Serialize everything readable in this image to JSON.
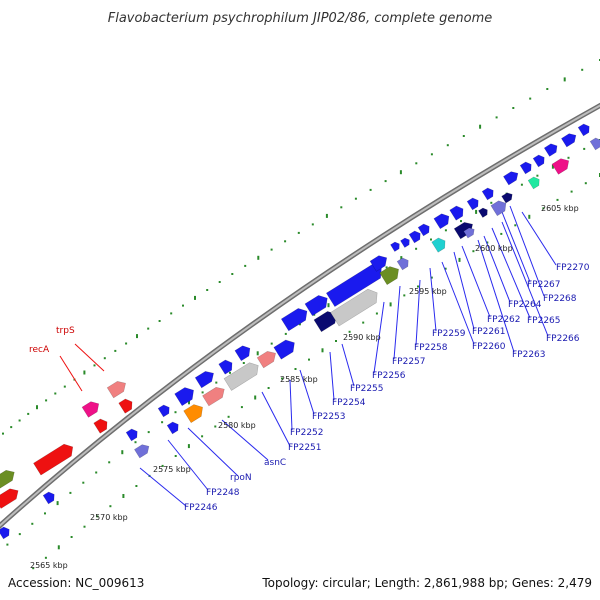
{
  "title": "Flavobacterium psychrophilum JIP02/86, complete genome",
  "accession": "Accession: NC_009613",
  "summary": "Topology: circular; Length: 2,861,988 bp; Genes: 2,479",
  "colors": {
    "backbone": "#888888",
    "tick": "#2a8a2a",
    "leader_blue": "#2a2aee",
    "leader_red": "#ee1111",
    "gene_blue": "#1a1aee",
    "gene_red": "#ee1111",
    "gene_pink": "#f08080",
    "gene_magenta": "#ee1188",
    "gene_navy": "#0a0a70",
    "gene_lavender": "#7070d8",
    "gene_olive": "#6b8e23",
    "gene_gray": "#c8c8c8",
    "gene_orange": "#ff8c00",
    "gene_cyan": "#20d0d0",
    "gene_mint": "#20e8a0"
  },
  "kbp_labels": [
    "2565 kbp",
    "2570 kbp",
    "2575 kbp",
    "2580 kbp",
    "2585 kbp",
    "2590 kbp",
    "2595 kbp",
    "2600 kbp",
    "2605 kbp"
  ],
  "gene_labels": [
    {
      "text": "trpS",
      "color": "red"
    },
    {
      "text": "recA",
      "color": "red"
    },
    {
      "text": "FP2246",
      "color": "blue"
    },
    {
      "text": "FP2248",
      "color": "blue"
    },
    {
      "text": "rpoN",
      "color": "blue"
    },
    {
      "text": "asnC",
      "color": "blue"
    },
    {
      "text": "FP2251",
      "color": "blue"
    },
    {
      "text": "FP2252",
      "color": "blue"
    },
    {
      "text": "FP2253",
      "color": "blue"
    },
    {
      "text": "FP2254",
      "color": "blue"
    },
    {
      "text": "FP2255",
      "color": "blue"
    },
    {
      "text": "FP2256",
      "color": "blue"
    },
    {
      "text": "FP2257",
      "color": "blue"
    },
    {
      "text": "FP2258",
      "color": "blue"
    },
    {
      "text": "FP2259",
      "color": "blue"
    },
    {
      "text": "FP2260",
      "color": "blue"
    },
    {
      "text": "FP2261",
      "color": "blue"
    },
    {
      "text": "FP2262",
      "color": "blue"
    },
    {
      "text": "FP2263",
      "color": "blue"
    },
    {
      "text": "FP2264",
      "color": "blue"
    },
    {
      "text": "FP2265",
      "color": "blue"
    },
    {
      "text": "FP2266",
      "color": "blue"
    },
    {
      "text": "FP2267",
      "color": "blue"
    },
    {
      "text": "FP2268",
      "color": "blue"
    },
    {
      "text": "FP2270",
      "color": "blue"
    }
  ]
}
